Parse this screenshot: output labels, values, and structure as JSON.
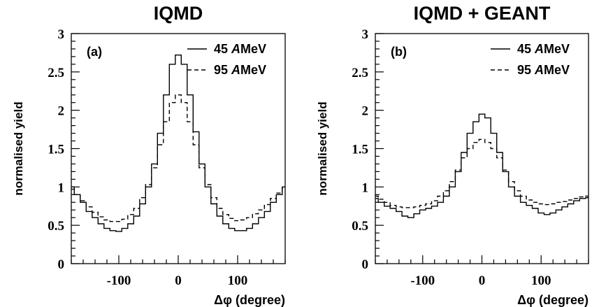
{
  "chart_data": [
    {
      "type": "line",
      "title": "IQMD",
      "panel_label": "(a)",
      "xlabel": "Δφ (degree)",
      "ylabel": "normalised yield",
      "xlim": [
        -180,
        180
      ],
      "ylim": [
        0,
        3
      ],
      "x_ticks": [
        -100,
        0,
        100
      ],
      "y_ticks": [
        0,
        0.5,
        1,
        1.5,
        2,
        2.5,
        3
      ],
      "y_tick_labels": [
        "0",
        "0.5",
        "1",
        "1.5",
        "2",
        "2.5",
        "3"
      ],
      "legend_position": "top-right",
      "x": [
        -180,
        -170,
        -160,
        -150,
        -140,
        -130,
        -120,
        -110,
        -100,
        -90,
        -80,
        -70,
        -60,
        -50,
        -40,
        -30,
        -20,
        -10,
        0,
        10,
        20,
        30,
        40,
        50,
        60,
        70,
        80,
        90,
        100,
        110,
        120,
        130,
        140,
        150,
        160,
        170,
        180
      ],
      "series": [
        {
          "name_prefix": "45 ",
          "name_italic": "A",
          "name_suffix": "MeV",
          "line_style": "solid",
          "values": [
            1.0,
            0.9,
            0.8,
            0.68,
            0.6,
            0.52,
            0.46,
            0.43,
            0.42,
            0.46,
            0.52,
            0.62,
            0.78,
            1.0,
            1.3,
            1.7,
            2.2,
            2.6,
            2.72,
            2.6,
            2.2,
            1.72,
            1.3,
            1.0,
            0.78,
            0.62,
            0.52,
            0.46,
            0.43,
            0.43,
            0.46,
            0.52,
            0.6,
            0.68,
            0.8,
            0.9,
            1.0
          ]
        },
        {
          "name_prefix": "95 ",
          "name_italic": "A",
          "name_suffix": "MeV",
          "line_style": "dashed",
          "values": [
            0.97,
            0.9,
            0.82,
            0.74,
            0.67,
            0.61,
            0.57,
            0.55,
            0.55,
            0.58,
            0.64,
            0.72,
            0.86,
            1.03,
            1.25,
            1.55,
            1.85,
            2.1,
            2.2,
            2.1,
            1.85,
            1.55,
            1.25,
            1.03,
            0.86,
            0.72,
            0.64,
            0.59,
            0.56,
            0.57,
            0.6,
            0.65,
            0.7,
            0.77,
            0.85,
            0.92,
            0.98
          ]
        }
      ]
    },
    {
      "type": "line",
      "title": "IQMD + GEANT",
      "panel_label": "(b)",
      "xlabel": "Δφ (degree)",
      "ylabel": "normalised yield",
      "xlim": [
        -180,
        180
      ],
      "ylim": [
        0,
        3
      ],
      "x_ticks": [
        -100,
        0,
        100
      ],
      "y_ticks": [
        0,
        0.5,
        1,
        1.5,
        2,
        2.5,
        3
      ],
      "y_tick_labels": [
        "0",
        "0.5",
        "1",
        "1.5",
        "2",
        "2.5",
        "3"
      ],
      "legend_position": "top-right",
      "x": [
        -180,
        -170,
        -160,
        -150,
        -140,
        -130,
        -120,
        -110,
        -100,
        -90,
        -80,
        -70,
        -60,
        -50,
        -40,
        -30,
        -20,
        -10,
        0,
        10,
        20,
        30,
        40,
        50,
        60,
        70,
        80,
        90,
        100,
        110,
        120,
        130,
        140,
        150,
        160,
        170,
        180
      ],
      "series": [
        {
          "name_prefix": "45 ",
          "name_italic": "A",
          "name_suffix": "MeV",
          "line_style": "solid",
          "values": [
            0.85,
            0.8,
            0.75,
            0.72,
            0.68,
            0.62,
            0.6,
            0.65,
            0.7,
            0.72,
            0.75,
            0.8,
            0.88,
            1.0,
            1.2,
            1.45,
            1.7,
            1.85,
            1.95,
            1.9,
            1.7,
            1.45,
            1.2,
            1.0,
            0.88,
            0.8,
            0.76,
            0.72,
            0.66,
            0.64,
            0.66,
            0.7,
            0.74,
            0.78,
            0.82,
            0.85,
            0.86
          ]
        },
        {
          "name_prefix": "95 ",
          "name_italic": "A",
          "name_suffix": "MeV",
          "line_style": "dashed",
          "values": [
            0.88,
            0.84,
            0.8,
            0.76,
            0.74,
            0.73,
            0.73,
            0.74,
            0.76,
            0.78,
            0.82,
            0.88,
            0.95,
            1.07,
            1.22,
            1.38,
            1.5,
            1.58,
            1.62,
            1.58,
            1.5,
            1.38,
            1.22,
            1.07,
            0.95,
            0.88,
            0.83,
            0.8,
            0.78,
            0.77,
            0.78,
            0.8,
            0.81,
            0.83,
            0.85,
            0.87,
            0.88
          ]
        }
      ]
    }
  ]
}
